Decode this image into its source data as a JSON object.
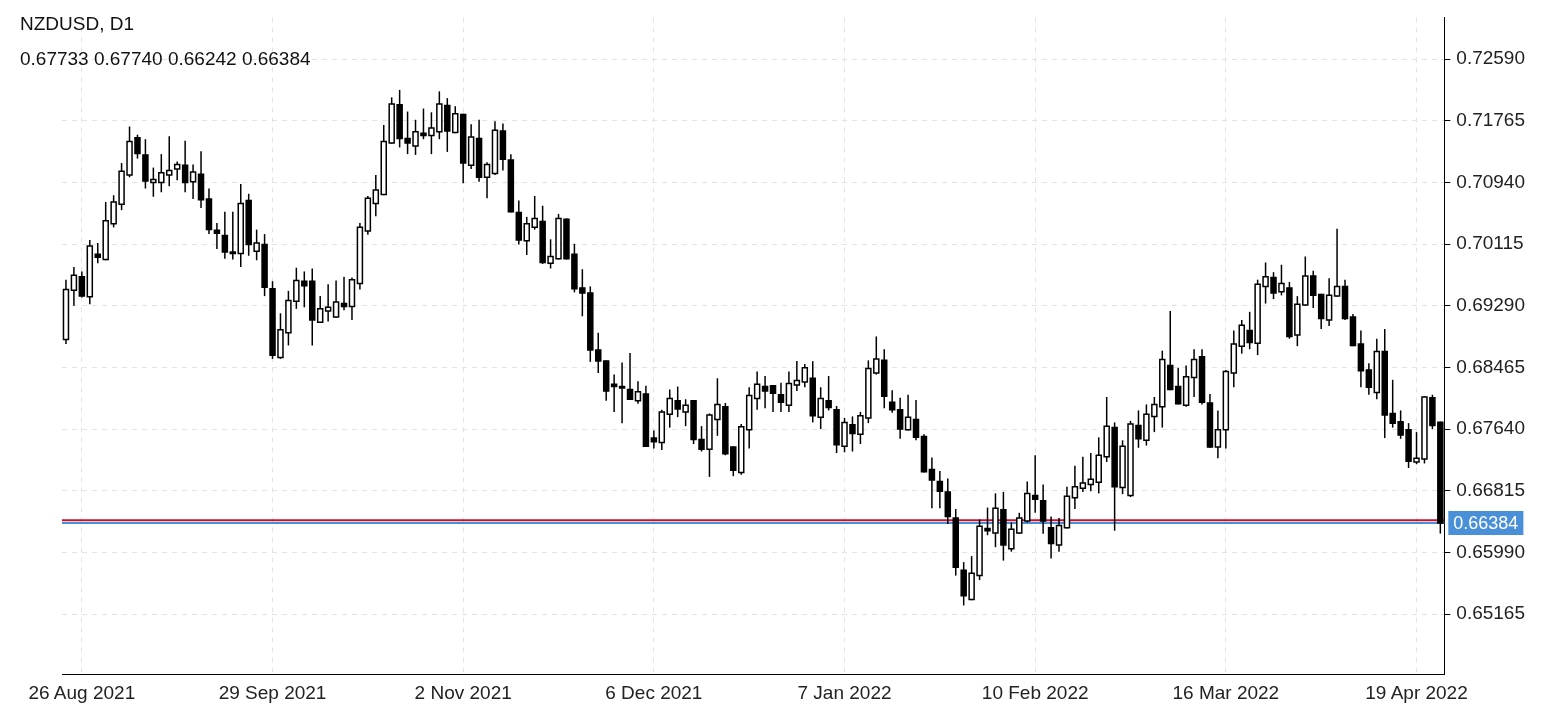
{
  "chart_data": {
    "type": "candlestick",
    "title": "NZDUSD, D1",
    "subtitle": "0.67733 0.67740 0.66242 0.66384",
    "categories": [
      null,
      null,
      "26 Aug 2021",
      null,
      null,
      null,
      null,
      null,
      null,
      null,
      null,
      null,
      null,
      null,
      null,
      null,
      null,
      null,
      null,
      null,
      null,
      null,
      null,
      null,
      null,
      null,
      "29 Sep 2021",
      null,
      null,
      null,
      null,
      null,
      null,
      null,
      null,
      null,
      null,
      null,
      null,
      null,
      null,
      null,
      null,
      null,
      null,
      null,
      null,
      null,
      null,
      null,
      "2 Nov 2021",
      null,
      null,
      null,
      null,
      null,
      null,
      null,
      null,
      null,
      null,
      null,
      null,
      null,
      null,
      null,
      null,
      null,
      null,
      null,
      null,
      null,
      null,
      null,
      "6 Dec 2021",
      null,
      null,
      null,
      null,
      null,
      null,
      null,
      null,
      null,
      null,
      null,
      null,
      null,
      null,
      null,
      null,
      null,
      null,
      null,
      null,
      null,
      null,
      null,
      "7 Jan 2022",
      null,
      null,
      null,
      null,
      null,
      null,
      null,
      null,
      null,
      null,
      null,
      null,
      null,
      null,
      null,
      null,
      null,
      null,
      null,
      null,
      null,
      null,
      null,
      "10 Feb 2022",
      null,
      null,
      null,
      null,
      null,
      null,
      null,
      null,
      null,
      null,
      null,
      null,
      null,
      null,
      null,
      null,
      null,
      null,
      null,
      null,
      null,
      null,
      null,
      "16 Mar 2022",
      null,
      null,
      null,
      null,
      null,
      null,
      null,
      null,
      null,
      null,
      null,
      null,
      null,
      null,
      null,
      null,
      null,
      null,
      null,
      null,
      null,
      null,
      null,
      "19 Apr 2022",
      null,
      null,
      null
    ],
    "ohlc": [
      [
        0.6884,
        0.6964,
        0.6878,
        0.6951
      ],
      [
        0.695,
        0.6981,
        0.6929,
        0.697
      ],
      [
        0.6968,
        0.6975,
        0.694,
        0.6942
      ],
      [
        0.6941,
        0.7017,
        0.6931,
        0.7009
      ],
      [
        0.6998,
        0.7013,
        0.6986,
        0.6994
      ],
      [
        0.6991,
        0.7068,
        0.699,
        0.7043
      ],
      [
        0.7039,
        0.7077,
        0.7034,
        0.7068
      ],
      [
        0.7065,
        0.712,
        0.7057,
        0.7109
      ],
      [
        0.7104,
        0.7169,
        0.7101,
        0.7149
      ],
      [
        0.7154,
        0.7158,
        0.7126,
        0.7133
      ],
      [
        0.7131,
        0.7152,
        0.7086,
        0.7096
      ],
      [
        0.7094,
        0.7114,
        0.7075,
        0.7098
      ],
      [
        0.7094,
        0.7132,
        0.7081,
        0.7107
      ],
      [
        0.7104,
        0.7156,
        0.7089,
        0.711
      ],
      [
        0.7112,
        0.7122,
        0.7097,
        0.7118
      ],
      [
        0.7117,
        0.715,
        0.7081,
        0.7094
      ],
      [
        0.7095,
        0.7118,
        0.7072,
        0.7108
      ],
      [
        0.7105,
        0.7136,
        0.706,
        0.7071
      ],
      [
        0.7072,
        0.7086,
        0.7025,
        0.7031
      ],
      [
        0.703,
        0.704,
        0.7005,
        0.7026
      ],
      [
        0.7023,
        0.7055,
        0.6992,
        0.7001
      ],
      [
        0.7001,
        0.7055,
        0.6991,
        0.6999
      ],
      [
        0.6999,
        0.7092,
        0.6981,
        0.7066
      ],
      [
        0.707,
        0.7079,
        0.6996,
        0.7011
      ],
      [
        0.7002,
        0.7031,
        0.699,
        0.7013
      ],
      [
        0.7011,
        0.7025,
        0.6942,
        0.6954
      ],
      [
        0.6952,
        0.6962,
        0.6858,
        0.6863
      ],
      [
        0.686,
        0.6919,
        0.6858,
        0.6897
      ],
      [
        0.6893,
        0.6949,
        0.6876,
        0.6936
      ],
      [
        0.6935,
        0.698,
        0.6925,
        0.6963
      ],
      [
        0.6962,
        0.6975,
        0.6927,
        0.6956
      ],
      [
        0.6962,
        0.6979,
        0.6876,
        0.691
      ],
      [
        0.6907,
        0.6942,
        0.6906,
        0.6925
      ],
      [
        0.6922,
        0.6958,
        0.6908,
        0.6927
      ],
      [
        0.6914,
        0.6963,
        0.6913,
        0.6934
      ],
      [
        0.6932,
        0.6968,
        0.6923,
        0.6928
      ],
      [
        0.6928,
        0.6967,
        0.691,
        0.6964
      ],
      [
        0.6959,
        0.704,
        0.6951,
        0.7034
      ],
      [
        0.7029,
        0.7076,
        0.7024,
        0.7073
      ],
      [
        0.7066,
        0.7104,
        0.7049,
        0.7084
      ],
      [
        0.7078,
        0.7171,
        0.7077,
        0.7149
      ],
      [
        0.7147,
        0.7208,
        0.7146,
        0.7199
      ],
      [
        0.7198,
        0.7218,
        0.7141,
        0.7153
      ],
      [
        0.7153,
        0.7189,
        0.7132,
        0.7147
      ],
      [
        0.7143,
        0.7178,
        0.7131,
        0.7162
      ],
      [
        0.716,
        0.7193,
        0.7152,
        0.7157
      ],
      [
        0.7157,
        0.7188,
        0.7132,
        0.7167
      ],
      [
        0.7162,
        0.7216,
        0.7152,
        0.7199
      ],
      [
        0.7197,
        0.7207,
        0.7135,
        0.7163
      ],
      [
        0.7161,
        0.7196,
        0.716,
        0.7186
      ],
      [
        0.7185,
        0.7186,
        0.7093,
        0.712
      ],
      [
        0.7117,
        0.7172,
        0.7112,
        0.7155
      ],
      [
        0.7153,
        0.7178,
        0.7095,
        0.7101
      ],
      [
        0.7101,
        0.7121,
        0.7073,
        0.7118
      ],
      [
        0.7106,
        0.7176,
        0.7104,
        0.7164
      ],
      [
        0.7163,
        0.7173,
        0.711,
        0.7125
      ],
      [
        0.7124,
        0.7132,
        0.7054,
        0.7055
      ],
      [
        0.7054,
        0.707,
        0.7011,
        0.7017
      ],
      [
        0.7016,
        0.7048,
        0.6997,
        0.7039
      ],
      [
        0.7034,
        0.7076,
        0.7031,
        0.7046
      ],
      [
        0.7042,
        0.7063,
        0.6985,
        0.6987
      ],
      [
        0.6986,
        0.7018,
        0.6979,
        0.6995
      ],
      [
        0.6992,
        0.7052,
        0.6991,
        0.7046
      ],
      [
        0.7045,
        0.7046,
        0.6991,
        0.6992
      ],
      [
        0.6998,
        0.7012,
        0.6947,
        0.6952
      ],
      [
        0.6953,
        0.6978,
        0.6915,
        0.6946
      ],
      [
        0.6946,
        0.6955,
        0.6854,
        0.687
      ],
      [
        0.687,
        0.6893,
        0.6839,
        0.6855
      ],
      [
        0.6855,
        0.6856,
        0.6802,
        0.6815
      ],
      [
        0.6824,
        0.6837,
        0.6787,
        0.6821
      ],
      [
        0.6821,
        0.6853,
        0.6772,
        0.6819
      ],
      [
        0.6817,
        0.6866,
        0.6803,
        0.6804
      ],
      [
        0.6802,
        0.6828,
        0.6798,
        0.6814
      ],
      [
        0.6811,
        0.6822,
        0.674,
        0.6741
      ],
      [
        0.6752,
        0.6762,
        0.6738,
        0.6747
      ],
      [
        0.6746,
        0.679,
        0.6736,
        0.6787
      ],
      [
        0.6784,
        0.6817,
        0.6766,
        0.6805
      ],
      [
        0.6802,
        0.6821,
        0.678,
        0.6791
      ],
      [
        0.6787,
        0.6804,
        0.6768,
        0.6796
      ],
      [
        0.6802,
        0.6803,
        0.6744,
        0.675
      ],
      [
        0.675,
        0.6768,
        0.6734,
        0.6737
      ],
      [
        0.6737,
        0.6785,
        0.67,
        0.6783
      ],
      [
        0.6777,
        0.6832,
        0.6755,
        0.6797
      ],
      [
        0.6794,
        0.6799,
        0.6729,
        0.6731
      ],
      [
        0.674,
        0.6741,
        0.6701,
        0.6709
      ],
      [
        0.6706,
        0.6771,
        0.6703,
        0.6767
      ],
      [
        0.6763,
        0.682,
        0.6738,
        0.6809
      ],
      [
        0.6805,
        0.6841,
        0.679,
        0.6824
      ],
      [
        0.6821,
        0.6835,
        0.6792,
        0.6815
      ],
      [
        0.6822,
        0.6823,
        0.6787,
        0.6812
      ],
      [
        0.681,
        0.6826,
        0.6787,
        0.68
      ],
      [
        0.6796,
        0.6841,
        0.6787,
        0.6825
      ],
      [
        0.6823,
        0.6855,
        0.6815,
        0.6829
      ],
      [
        0.6827,
        0.6851,
        0.682,
        0.6846
      ],
      [
        0.6832,
        0.6855,
        0.6773,
        0.6782
      ],
      [
        0.678,
        0.682,
        0.6764,
        0.6805
      ],
      [
        0.6802,
        0.6835,
        0.6789,
        0.6793
      ],
      [
        0.679,
        0.6795,
        0.6732,
        0.6743
      ],
      [
        0.6741,
        0.6779,
        0.6733,
        0.6773
      ],
      [
        0.677,
        0.6781,
        0.6734,
        0.6758
      ],
      [
        0.6757,
        0.6787,
        0.6744,
        0.6782
      ],
      [
        0.6779,
        0.6856,
        0.6772,
        0.6845
      ],
      [
        0.6839,
        0.6888,
        0.6837,
        0.6858
      ],
      [
        0.6856,
        0.6871,
        0.6792,
        0.6808
      ],
      [
        0.68,
        0.6816,
        0.6786,
        0.679
      ],
      [
        0.679,
        0.6806,
        0.6751,
        0.6764
      ],
      [
        0.6763,
        0.681,
        0.6762,
        0.678
      ],
      [
        0.6777,
        0.6803,
        0.6749,
        0.6753
      ],
      [
        0.6754,
        0.6757,
        0.6706,
        0.6707
      ],
      [
        0.671,
        0.6726,
        0.6658,
        0.6696
      ],
      [
        0.6694,
        0.6708,
        0.6658,
        0.6681
      ],
      [
        0.668,
        0.6698,
        0.6637,
        0.6647
      ],
      [
        0.6645,
        0.6657,
        0.6568,
        0.6579
      ],
      [
        0.6575,
        0.6586,
        0.6528,
        0.6541
      ],
      [
        0.6536,
        0.6594,
        0.6535,
        0.6571
      ],
      [
        0.6568,
        0.6643,
        0.6562,
        0.6634
      ],
      [
        0.6631,
        0.6659,
        0.6622,
        0.6628
      ],
      [
        0.6625,
        0.6678,
        0.6606,
        0.6658
      ],
      [
        0.6656,
        0.668,
        0.6588,
        0.6609
      ],
      [
        0.6604,
        0.6639,
        0.66,
        0.663
      ],
      [
        0.6625,
        0.6652,
        0.6624,
        0.6645
      ],
      [
        0.6641,
        0.6694,
        0.6639,
        0.6678
      ],
      [
        0.6675,
        0.6729,
        0.6652,
        0.667
      ],
      [
        0.6668,
        0.669,
        0.6624,
        0.6641
      ],
      [
        0.6632,
        0.6647,
        0.6591,
        0.6611
      ],
      [
        0.6609,
        0.6645,
        0.66,
        0.6635
      ],
      [
        0.6632,
        0.6687,
        0.6631,
        0.6674
      ],
      [
        0.6672,
        0.6715,
        0.6657,
        0.6687
      ],
      [
        0.6685,
        0.6727,
        0.668,
        0.6692
      ],
      [
        0.669,
        0.6732,
        0.6681,
        0.6697
      ],
      [
        0.6693,
        0.6753,
        0.6678,
        0.6729
      ],
      [
        0.6727,
        0.6807,
        0.672,
        0.6768
      ],
      [
        0.6766,
        0.6773,
        0.6628,
        0.6687
      ],
      [
        0.6686,
        0.6749,
        0.6677,
        0.6741
      ],
      [
        0.6675,
        0.6775,
        0.6673,
        0.6771
      ],
      [
        0.6769,
        0.6789,
        0.6739,
        0.6751
      ],
      [
        0.6749,
        0.6797,
        0.6742,
        0.6784
      ],
      [
        0.6781,
        0.6807,
        0.676,
        0.6797
      ],
      [
        0.6794,
        0.6869,
        0.6766,
        0.6857
      ],
      [
        0.6849,
        0.6922,
        0.6816,
        0.6817
      ],
      [
        0.6821,
        0.6846,
        0.6797,
        0.6798
      ],
      [
        0.6796,
        0.6849,
        0.6794,
        0.6834
      ],
      [
        0.6833,
        0.6871,
        0.6807,
        0.6857
      ],
      [
        0.6861,
        0.6871,
        0.6797,
        0.68
      ],
      [
        0.6799,
        0.6811,
        0.6739,
        0.674
      ],
      [
        0.674,
        0.6789,
        0.6725,
        0.6763
      ],
      [
        0.6763,
        0.6843,
        0.6738,
        0.6841
      ],
      [
        0.6839,
        0.6896,
        0.682,
        0.6878
      ],
      [
        0.6875,
        0.691,
        0.6865,
        0.6903
      ],
      [
        0.6896,
        0.6921,
        0.6871,
        0.688
      ],
      [
        0.6879,
        0.6964,
        0.6863,
        0.6958
      ],
      [
        0.6955,
        0.6987,
        0.6932,
        0.6968
      ],
      [
        0.6967,
        0.6974,
        0.6938,
        0.6946
      ],
      [
        0.6948,
        0.6984,
        0.6943,
        0.6959
      ],
      [
        0.6953,
        0.6961,
        0.6885,
        0.6888
      ],
      [
        0.689,
        0.6942,
        0.6875,
        0.6931
      ],
      [
        0.693,
        0.6995,
        0.6929,
        0.6969
      ],
      [
        0.6969,
        0.6976,
        0.6926,
        0.6943
      ],
      [
        0.6944,
        0.6945,
        0.6898,
        0.6912
      ],
      [
        0.691,
        0.6966,
        0.6902,
        0.6943
      ],
      [
        0.6942,
        0.7032,
        0.6941,
        0.6955
      ],
      [
        0.6955,
        0.6964,
        0.691,
        0.6912
      ],
      [
        0.6914,
        0.6918,
        0.6875,
        0.6876
      ],
      [
        0.6878,
        0.6896,
        0.682,
        0.6842
      ],
      [
        0.6843,
        0.6852,
        0.681,
        0.682
      ],
      [
        0.6813,
        0.6885,
        0.6804,
        0.6868
      ],
      [
        0.6868,
        0.6898,
        0.6752,
        0.6783
      ],
      [
        0.6785,
        0.683,
        0.6766,
        0.6772
      ],
      [
        0.6774,
        0.6789,
        0.6751,
        0.6756
      ],
      [
        0.6763,
        0.6772,
        0.6712,
        0.6721
      ],
      [
        0.672,
        0.676,
        0.6717,
        0.6725
      ],
      [
        0.6724,
        0.6808,
        0.6718,
        0.6807
      ],
      [
        0.6806,
        0.681,
        0.6764,
        0.6769
      ],
      [
        0.67733,
        0.6774,
        0.66242,
        0.66384
      ]
    ],
    "ylim": [
      0.6436,
      0.7315
    ],
    "yticks": [
      {
        "value": 0.7259,
        "label": "0.72590"
      },
      {
        "value": 0.71765,
        "label": "0.71765"
      },
      {
        "value": 0.7094,
        "label": "0.70940"
      },
      {
        "value": 0.70115,
        "label": "0.70115"
      },
      {
        "value": 0.6929,
        "label": "0.69290"
      },
      {
        "value": 0.68465,
        "label": "0.68465"
      },
      {
        "value": 0.6764,
        "label": "0.67640"
      },
      {
        "value": 0.66815,
        "label": "0.66815"
      },
      {
        "value": 0.6599,
        "label": "0.65990"
      },
      {
        "value": 0.65165,
        "label": "0.65165"
      }
    ],
    "grid": true,
    "ref_lines": [
      {
        "axis": "y",
        "value": 0.6642,
        "color": "#c8102e"
      },
      {
        "axis": "y",
        "value": 0.66384,
        "label": "0.66384",
        "color": "#4a90d9"
      }
    ]
  }
}
